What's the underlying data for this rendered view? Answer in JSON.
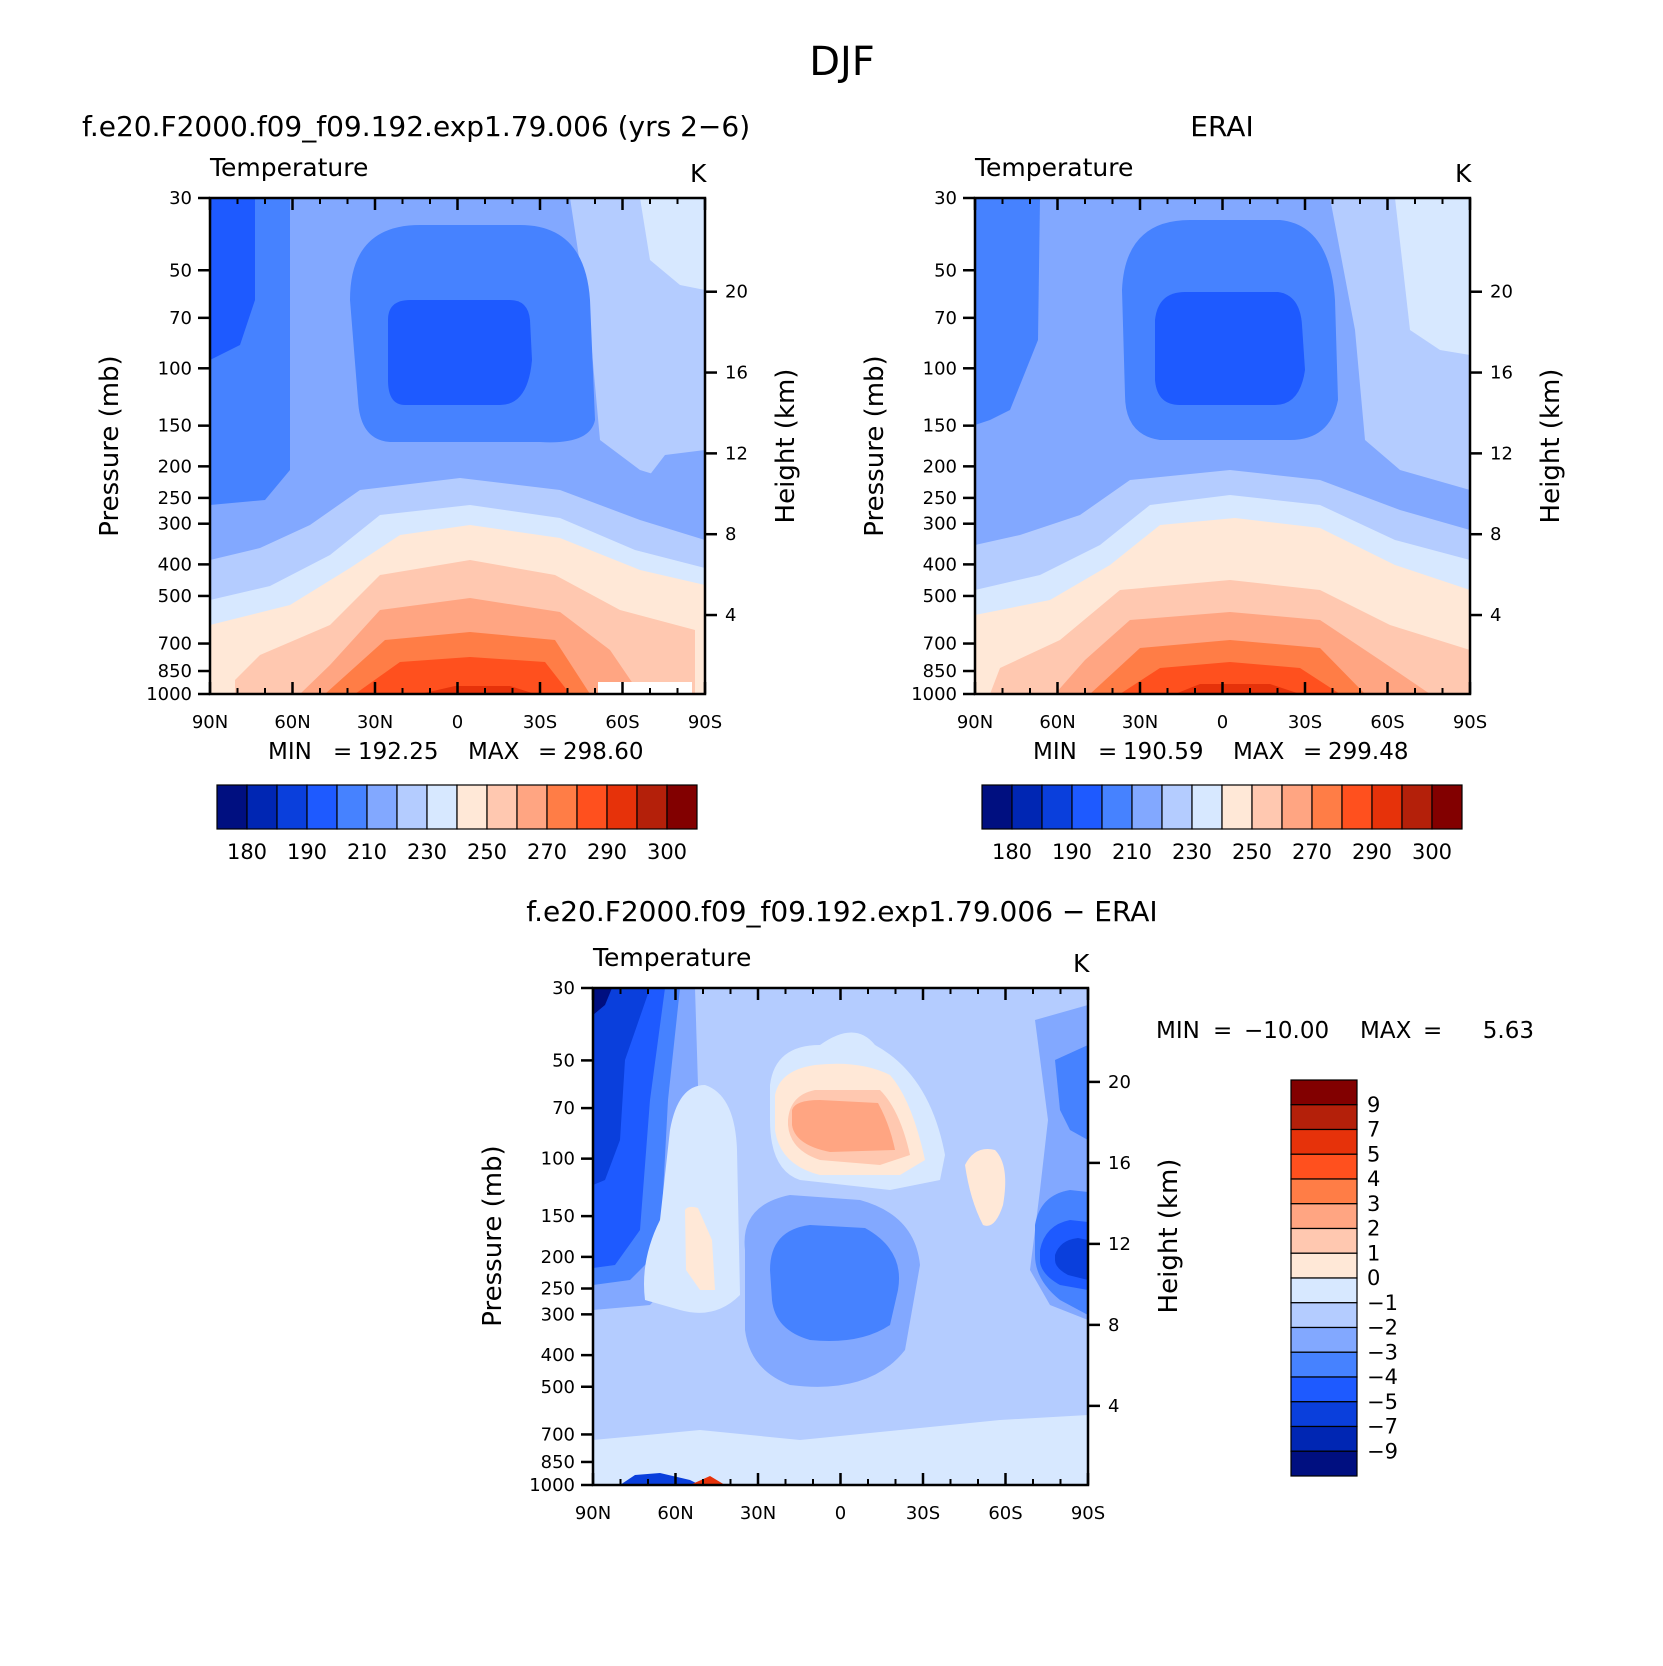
{
  "title": "DJF",
  "chart_data": [
    {
      "type": "contour",
      "panel": "model",
      "title": "f.e20.F2000.f09_f09.192.exp1.79.006 (yrs 2−6)",
      "variable": "Temperature",
      "units": "K",
      "ylabel_left": "Pressure (mb)",
      "ylabel_right": "Height (km)",
      "x_ticks": [
        "90N",
        "60N",
        "30N",
        "0",
        "30S",
        "60S",
        "90S"
      ],
      "pressure_ticks": [
        30,
        50,
        70,
        100,
        150,
        200,
        250,
        300,
        400,
        500,
        700,
        850,
        1000
      ],
      "height_ticks": [
        4,
        8,
        12,
        16,
        20
      ],
      "min_label": "MIN",
      "max_label": "MAX",
      "min": "192.25",
      "max": "298.60",
      "colorbar_labels": [
        "180",
        "190",
        "210",
        "230",
        "250",
        "270",
        "290",
        "300"
      ]
    },
    {
      "type": "contour",
      "panel": "obs",
      "title": "ERAI",
      "variable": "Temperature",
      "units": "K",
      "ylabel_left": "Pressure (mb)",
      "ylabel_right": "Height (km)",
      "x_ticks": [
        "90N",
        "60N",
        "30N",
        "0",
        "30S",
        "60S",
        "90S"
      ],
      "pressure_ticks": [
        30,
        50,
        70,
        100,
        150,
        200,
        250,
        300,
        400,
        500,
        700,
        850,
        1000
      ],
      "height_ticks": [
        4,
        8,
        12,
        16,
        20
      ],
      "min_label": "MIN",
      "max_label": "MAX",
      "min": "190.59",
      "max": "299.48",
      "colorbar_labels": [
        "180",
        "190",
        "210",
        "230",
        "250",
        "270",
        "290",
        "300"
      ]
    },
    {
      "type": "contour",
      "panel": "difference",
      "title": "f.e20.F2000.f09_f09.192.exp1.79.006 − ERAI",
      "variable": "Temperature",
      "units": "K",
      "ylabel_left": "Pressure (mb)",
      "ylabel_right": "Height (km)",
      "x_ticks": [
        "90N",
        "60N",
        "30N",
        "0",
        "30S",
        "60S",
        "90S"
      ],
      "pressure_ticks": [
        30,
        50,
        70,
        100,
        150,
        200,
        250,
        300,
        400,
        500,
        700,
        850,
        1000
      ],
      "height_ticks": [
        4,
        8,
        12,
        16,
        20
      ],
      "min_label": "MIN",
      "max_label": "MAX",
      "min": "−10.00",
      "max": "5.63",
      "colorbar_labels": [
        "9",
        "7",
        "5",
        "4",
        "3",
        "2",
        "1",
        "0",
        "−1",
        "−2",
        "−3",
        "−4",
        "−5",
        "−7",
        "−9"
      ]
    }
  ],
  "colors": {
    "abs_scale": [
      "#000f80",
      "#0026b3",
      "#0a3fdc",
      "#1e5aff",
      "#4682ff",
      "#82a8ff",
      "#b4ccff",
      "#d7e8ff",
      "#ffe8d7",
      "#ffc8b0",
      "#ffa582",
      "#ff7d46",
      "#ff501e",
      "#e6320a",
      "#b4200a",
      "#820000"
    ],
    "diff_scale": [
      "#820000",
      "#b4200a",
      "#e6320a",
      "#ff501e",
      "#ff7d46",
      "#ffa582",
      "#ffc8b0",
      "#ffe8d7",
      "#d7e8ff",
      "#b4ccff",
      "#82a8ff",
      "#4682ff",
      "#1e5aff",
      "#0a3fdc",
      "#0026b3",
      "#000f80"
    ]
  }
}
